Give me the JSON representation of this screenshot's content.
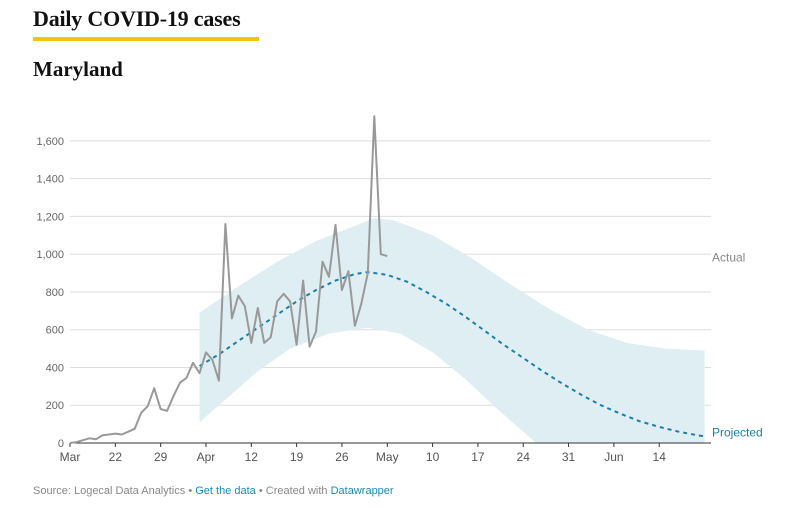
{
  "header": {
    "title": "Daily COVID-19 cases",
    "subtitle": "Maryland"
  },
  "footer": {
    "source_text": "Source: Logecal Data Analytics",
    "separator": "•",
    "get_data_link": "Get the data",
    "created_with_text": "Created with",
    "datawrapper_link": "Datawrapper"
  },
  "colors": {
    "actual": "#999999",
    "projected": "#1a7fa8",
    "band": "#dfeef2",
    "grid": "#dddddd",
    "title_rule": "#f1c40f"
  },
  "chart_data": {
    "type": "line",
    "x_axis": {
      "start": "2020-03-15",
      "end": "2020-06-22",
      "ticks": [
        {
          "date": "2020-03-15",
          "label": "Mar"
        },
        {
          "date": "2020-03-22",
          "label": "22"
        },
        {
          "date": "2020-03-29",
          "label": "29"
        },
        {
          "date": "2020-04-05",
          "label": "Apr"
        },
        {
          "date": "2020-04-12",
          "label": "12"
        },
        {
          "date": "2020-04-19",
          "label": "19"
        },
        {
          "date": "2020-04-26",
          "label": "26"
        },
        {
          "date": "2020-05-03",
          "label": "May"
        },
        {
          "date": "2020-05-10",
          "label": "10"
        },
        {
          "date": "2020-05-17",
          "label": "17"
        },
        {
          "date": "2020-05-24",
          "label": "24"
        },
        {
          "date": "2020-05-31",
          "label": "31"
        },
        {
          "date": "2020-06-07",
          "label": "Jun"
        },
        {
          "date": "2020-06-14",
          "label": "14"
        }
      ]
    },
    "y_axis": {
      "ylim": [
        0,
        1700
      ],
      "ticks": [
        0,
        200,
        400,
        600,
        800,
        1000,
        1200,
        1400,
        1600
      ],
      "tick_labels": [
        "0",
        "200",
        "400",
        "600",
        "800",
        "1,000",
        "1,200",
        "1,400",
        "1,600"
      ]
    },
    "grid": true,
    "series": [
      {
        "name": "Actual",
        "style": "solid",
        "points": [
          [
            "2020-03-15",
            0
          ],
          [
            "2020-03-16",
            5
          ],
          [
            "2020-03-17",
            15
          ],
          [
            "2020-03-18",
            25
          ],
          [
            "2020-03-19",
            20
          ],
          [
            "2020-03-20",
            40
          ],
          [
            "2020-03-21",
            45
          ],
          [
            "2020-03-22",
            50
          ],
          [
            "2020-03-23",
            45
          ],
          [
            "2020-03-24",
            60
          ],
          [
            "2020-03-25",
            75
          ],
          [
            "2020-03-26",
            160
          ],
          [
            "2020-03-27",
            195
          ],
          [
            "2020-03-28",
            290
          ],
          [
            "2020-03-29",
            180
          ],
          [
            "2020-03-30",
            170
          ],
          [
            "2020-03-31",
            250
          ],
          [
            "2020-04-01",
            320
          ],
          [
            "2020-04-02",
            345
          ],
          [
            "2020-04-03",
            425
          ],
          [
            "2020-04-04",
            370
          ],
          [
            "2020-04-05",
            480
          ],
          [
            "2020-04-06",
            440
          ],
          [
            "2020-04-07",
            330
          ],
          [
            "2020-04-08",
            1160
          ],
          [
            "2020-04-09",
            660
          ],
          [
            "2020-04-10",
            780
          ],
          [
            "2020-04-11",
            725
          ],
          [
            "2020-04-12",
            530
          ],
          [
            "2020-04-13",
            715
          ],
          [
            "2020-04-14",
            530
          ],
          [
            "2020-04-15",
            560
          ],
          [
            "2020-04-16",
            750
          ],
          [
            "2020-04-17",
            790
          ],
          [
            "2020-04-18",
            750
          ],
          [
            "2020-04-19",
            520
          ],
          [
            "2020-04-20",
            860
          ],
          [
            "2020-04-21",
            510
          ],
          [
            "2020-04-22",
            590
          ],
          [
            "2020-04-23",
            960
          ],
          [
            "2020-04-24",
            880
          ],
          [
            "2020-04-25",
            1155
          ],
          [
            "2020-04-26",
            810
          ],
          [
            "2020-04-27",
            910
          ],
          [
            "2020-04-28",
            620
          ],
          [
            "2020-04-29",
            740
          ],
          [
            "2020-04-30",
            900
          ],
          [
            "2020-05-01",
            1730
          ],
          [
            "2020-05-02",
            1000
          ],
          [
            "2020-05-03",
            990
          ]
        ]
      },
      {
        "name": "Projected",
        "style": "dashed",
        "peak_date": "2020-04-30",
        "points": [
          [
            "2020-04-04",
            408
          ],
          [
            "2020-04-07",
            470
          ],
          [
            "2020-04-10",
            540
          ],
          [
            "2020-04-13",
            610
          ],
          [
            "2020-04-16",
            680
          ],
          [
            "2020-04-19",
            750
          ],
          [
            "2020-04-22",
            810
          ],
          [
            "2020-04-25",
            860
          ],
          [
            "2020-04-28",
            895
          ],
          [
            "2020-04-30",
            905
          ],
          [
            "2020-05-03",
            890
          ],
          [
            "2020-05-06",
            855
          ],
          [
            "2020-05-09",
            800
          ],
          [
            "2020-05-12",
            740
          ],
          [
            "2020-05-15",
            670
          ],
          [
            "2020-05-18",
            595
          ],
          [
            "2020-05-21",
            520
          ],
          [
            "2020-05-24",
            450
          ],
          [
            "2020-05-27",
            380
          ],
          [
            "2020-05-30",
            315
          ],
          [
            "2020-06-02",
            255
          ],
          [
            "2020-06-05",
            200
          ],
          [
            "2020-06-08",
            155
          ],
          [
            "2020-06-11",
            115
          ],
          [
            "2020-06-14",
            85
          ],
          [
            "2020-06-17",
            60
          ],
          [
            "2020-06-20",
            40
          ],
          [
            "2020-06-21",
            35
          ]
        ]
      },
      {
        "name": "",
        "style": "band",
        "upper": [
          [
            "2020-04-04",
            690
          ],
          [
            "2020-04-10",
            830
          ],
          [
            "2020-04-16",
            960
          ],
          [
            "2020-04-22",
            1070
          ],
          [
            "2020-04-28",
            1150
          ],
          [
            "2020-05-01",
            1190
          ],
          [
            "2020-05-04",
            1180
          ],
          [
            "2020-05-10",
            1100
          ],
          [
            "2020-05-16",
            980
          ],
          [
            "2020-05-22",
            840
          ],
          [
            "2020-05-28",
            710
          ],
          [
            "2020-06-03",
            600
          ],
          [
            "2020-06-09",
            530
          ],
          [
            "2020-06-15",
            500
          ],
          [
            "2020-06-21",
            490
          ]
        ],
        "lower": [
          [
            "2020-04-04",
            110
          ],
          [
            "2020-04-08",
            230
          ],
          [
            "2020-04-13",
            380
          ],
          [
            "2020-04-18",
            500
          ],
          [
            "2020-04-24",
            580
          ],
          [
            "2020-04-30",
            610
          ],
          [
            "2020-05-05",
            580
          ],
          [
            "2020-05-10",
            480
          ],
          [
            "2020-05-15",
            340
          ],
          [
            "2020-05-20",
            180
          ],
          [
            "2020-05-26",
            0
          ]
        ]
      }
    ]
  }
}
